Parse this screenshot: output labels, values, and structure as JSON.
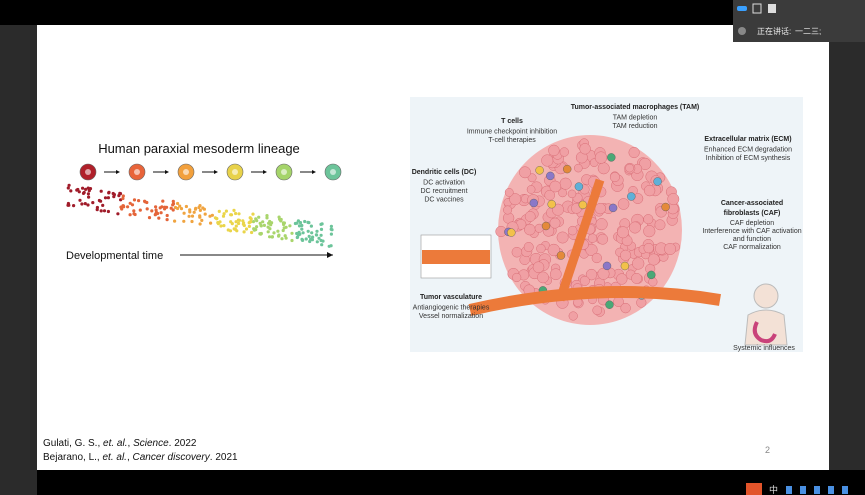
{
  "slide": {
    "lineage_title": "Human paraxial mesoderm lineage",
    "time_label": "Developmental time",
    "diagram": {
      "tam": {
        "title": "Tumor-associated macrophages (TAM)",
        "lines": [
          "TAM depletion",
          "TAM reduction"
        ]
      },
      "tcells": {
        "title": "T cells",
        "lines": [
          "Immune checkpoint inhibition",
          "T-cell therapies"
        ]
      },
      "ecm": {
        "title": "Extracellular matrix (ECM)",
        "lines": [
          "Enhanced ECM degradation",
          "Inhibition of ECM synthesis"
        ]
      },
      "dc": {
        "title": "Dendritic cells (DC)",
        "lines": [
          "DC activation",
          "DC recruitment",
          "DC vaccines"
        ]
      },
      "caf": {
        "title": [
          "Cancer-associated",
          "fibroblasts (CAF)"
        ],
        "lines": [
          "CAF depletion",
          "Interference with CAF activation",
          "and function",
          "CAF normalization"
        ]
      },
      "vasculature": {
        "title": "Tumor vasculature",
        "lines": [
          "Antiangiogenic therapies",
          "Vessel normalization"
        ]
      },
      "systemic": "Systemic influences"
    },
    "references": [
      [
        "Gulati, G. S., ",
        "et. al.",
        ", ",
        "Science",
        ". 2022"
      ],
      [
        "Bejarano, L., ",
        "et. al.",
        ", ",
        "Cancer discovery",
        ". 2021"
      ]
    ],
    "page_number": "2"
  },
  "speaking": {
    "label": "正在讲话:",
    "name": "一二三;"
  },
  "taskbar": {
    "ime": "中"
  }
}
